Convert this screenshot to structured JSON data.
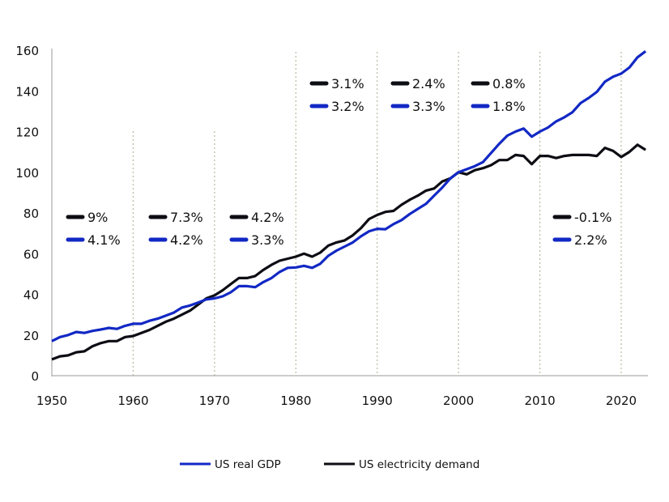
{
  "chart_data": {
    "type": "line",
    "title": "",
    "xlabel": "",
    "ylabel": "",
    "xlim": [
      1950,
      2024
    ],
    "ylim": [
      0,
      160
    ],
    "xticks": [
      1950,
      1960,
      1970,
      1980,
      1990,
      2000,
      2010,
      2020
    ],
    "yticks": [
      0,
      20,
      40,
      60,
      80,
      100,
      120,
      140,
      160
    ],
    "grid": "dotted vertical lines at decades",
    "legend": "bottom",
    "x": [
      1950,
      1951,
      1952,
      1953,
      1954,
      1955,
      1956,
      1957,
      1958,
      1959,
      1960,
      1961,
      1962,
      1963,
      1964,
      1965,
      1966,
      1967,
      1968,
      1969,
      1970,
      1971,
      1972,
      1973,
      1974,
      1975,
      1976,
      1977,
      1978,
      1979,
      1980,
      1981,
      1982,
      1983,
      1984,
      1985,
      1986,
      1987,
      1988,
      1989,
      1990,
      1991,
      1992,
      1993,
      1994,
      1995,
      1996,
      1997,
      1998,
      1999,
      2000,
      2001,
      2002,
      2003,
      2004,
      2005,
      2006,
      2007,
      2008,
      2009,
      2010,
      2011,
      2012,
      2013,
      2014,
      2015,
      2016,
      2017,
      2018,
      2019,
      2020,
      2021,
      2022,
      2023
    ],
    "series": [
      {
        "name": "US real GDP",
        "color": "#1228c4",
        "values": [
          17,
          19,
          20,
          21.5,
          21,
          22,
          22.7,
          23.5,
          23,
          24.5,
          25.5,
          25.5,
          27,
          28,
          29.5,
          31,
          33.5,
          34.5,
          36,
          37.5,
          38,
          39,
          41,
          44,
          44,
          43.5,
          46,
          48,
          51,
          53,
          53.2,
          54,
          53,
          55,
          59,
          61.5,
          63.5,
          65.5,
          68.5,
          71,
          72.2,
          72,
          74.5,
          76.5,
          79.5,
          82,
          84.5,
          88.5,
          92.5,
          97,
          100,
          101.5,
          103,
          105,
          109.5,
          114,
          118,
          120,
          121.5,
          117.5,
          120,
          122,
          125,
          127,
          129.5,
          134,
          136.5,
          139.5,
          144.5,
          147,
          148.5,
          151.5,
          156.5,
          159.5
        ]
      },
      {
        "name": "US electricity demand",
        "color": "#0d0d14",
        "values": [
          8,
          9.5,
          10,
          11.5,
          12,
          14.5,
          16,
          17,
          17,
          19,
          19.5,
          21,
          22.5,
          24.5,
          26.5,
          28,
          30,
          32,
          35,
          38,
          39.5,
          42,
          45,
          48,
          48,
          49,
          52,
          54.5,
          56.5,
          57.5,
          58.5,
          60,
          58.5,
          60.5,
          64,
          65.5,
          66.5,
          69,
          72.5,
          77,
          79,
          80.5,
          81,
          84,
          86.5,
          88.5,
          91,
          92,
          95.5,
          97,
          100,
          99,
          101,
          102,
          103.5,
          106,
          106,
          108.5,
          108,
          104,
          108,
          108,
          107,
          108,
          108.5,
          108.5,
          108.5,
          108,
          112,
          110.5,
          107.5,
          110,
          113.5,
          111
        ]
      }
    ],
    "annotations": [
      {
        "decade": "1950s",
        "electricity": "9%",
        "gdp": "4.1%"
      },
      {
        "decade": "1960s",
        "electricity": "7.3%",
        "gdp": "4.2%"
      },
      {
        "decade": "1970s",
        "electricity": "4.2%",
        "gdp": "3.3%"
      },
      {
        "decade": "1980s",
        "electricity": "3.1%",
        "gdp": "3.2%"
      },
      {
        "decade": "1990s",
        "electricity": "2.4%",
        "gdp": "3.3%"
      },
      {
        "decade": "2000s",
        "electricity": "0.8%",
        "gdp": "1.8%"
      },
      {
        "decade": "2010s",
        "electricity": "-0.1%",
        "gdp": "2.2%"
      }
    ]
  }
}
